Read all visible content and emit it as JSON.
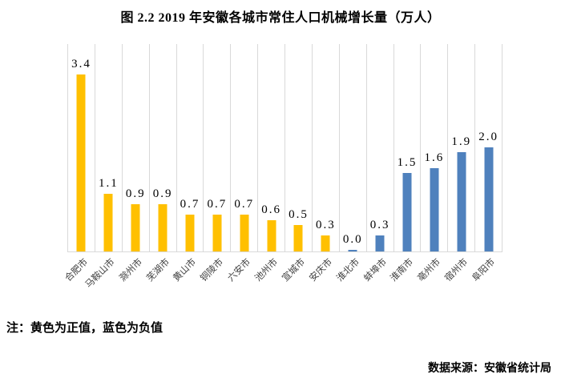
{
  "title": "图 2.2  2019 年安徽各城市常住人口机械增长量（万人）",
  "note": "注：黄色为正值，蓝色为负值",
  "source": "数据来源：安徽省统计局",
  "colors": {
    "positive_bar": "#FFC000",
    "negative_bar": "#4F81BD",
    "gridline": "#D9D9D9"
  },
  "chart_data": {
    "type": "bar",
    "title": "图 2.2  2019 年安徽各城市常住人口机械增长量（万人）",
    "categories": [
      "合肥市",
      "马鞍山市",
      "滁州市",
      "芜湖市",
      "黄山市",
      "铜陵市",
      "六安市",
      "池州市",
      "宣城市",
      "安庆市",
      "淮北市",
      "蚌埠市",
      "淮南市",
      "亳州市",
      "宿州市",
      "阜阳市"
    ],
    "values": [
      3.4,
      1.1,
      0.9,
      0.9,
      0.7,
      0.7,
      0.7,
      0.6,
      0.5,
      0.3,
      0.0,
      0.3,
      1.5,
      1.6,
      1.9,
      2.0
    ],
    "signs": [
      "positive",
      "positive",
      "positive",
      "positive",
      "positive",
      "positive",
      "positive",
      "positive",
      "positive",
      "positive",
      "negative",
      "negative",
      "negative",
      "negative",
      "negative",
      "negative"
    ],
    "data_labels_shown": true,
    "xlabel": "",
    "ylabel": "",
    "ylim": [
      0,
      4
    ],
    "y_axis_shown": false,
    "grid": "vertical-category-separators",
    "legend": "none",
    "bar_color_positive": "#FFC000",
    "bar_color_negative": "#4F81BD"
  }
}
